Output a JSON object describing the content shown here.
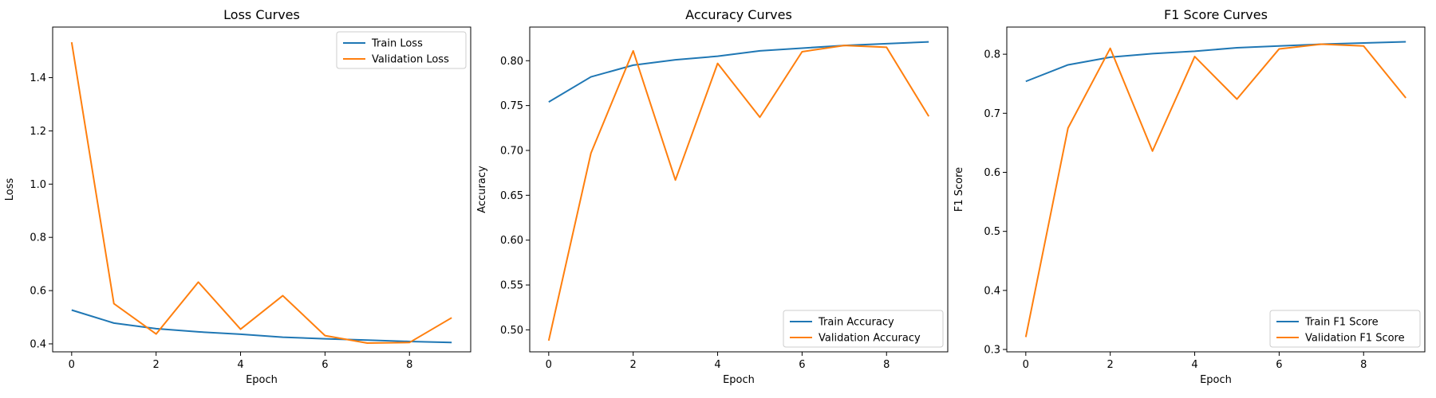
{
  "chart_data": [
    {
      "type": "line",
      "title": "Loss Curves",
      "xlabel": "Epoch",
      "ylabel": "Loss",
      "x": [
        0,
        1,
        2,
        3,
        4,
        5,
        6,
        7,
        8,
        9
      ],
      "xlim": [
        -0.45,
        9.45
      ],
      "ylim": [
        0.37,
        1.59
      ],
      "xticks": [
        0,
        2,
        4,
        6,
        8
      ],
      "xtick_labels": [
        "0",
        "2",
        "4",
        "6",
        "8"
      ],
      "yticks": [
        0.4,
        0.6,
        0.8,
        1.0,
        1.2,
        1.4
      ],
      "ytick_labels": [
        "0.4",
        "0.6",
        "0.8",
        "1.0",
        "1.2",
        "1.4"
      ],
      "legend_position": "top-right",
      "series": [
        {
          "name": "Train Loss",
          "color": "#1f77b4",
          "values": [
            0.527,
            0.478,
            0.457,
            0.445,
            0.436,
            0.425,
            0.419,
            0.414,
            0.409,
            0.405
          ]
        },
        {
          "name": "Validation Loss",
          "color": "#ff7f0e",
          "values": [
            1.533,
            0.551,
            0.437,
            0.632,
            0.455,
            0.581,
            0.431,
            0.403,
            0.405,
            0.498
          ]
        }
      ]
    },
    {
      "type": "line",
      "title": "Accuracy Curves",
      "xlabel": "Epoch",
      "ylabel": "Accuracy",
      "x": [
        0,
        1,
        2,
        3,
        4,
        5,
        6,
        7,
        8,
        9
      ],
      "xlim": [
        -0.45,
        9.45
      ],
      "ylim": [
        0.4755,
        0.8375
      ],
      "xticks": [
        0,
        2,
        4,
        6,
        8
      ],
      "xtick_labels": [
        "0",
        "2",
        "4",
        "6",
        "8"
      ],
      "yticks": [
        0.5,
        0.55,
        0.6,
        0.65,
        0.7,
        0.75,
        0.8
      ],
      "ytick_labels": [
        "0.50",
        "0.55",
        "0.60",
        "0.65",
        "0.70",
        "0.75",
        "0.80"
      ],
      "legend_position": "bottom-right",
      "series": [
        {
          "name": "Train Accuracy",
          "color": "#1f77b4",
          "values": [
            0.754,
            0.782,
            0.795,
            0.801,
            0.805,
            0.811,
            0.814,
            0.817,
            0.819,
            0.821
          ]
        },
        {
          "name": "Validation Accuracy",
          "color": "#ff7f0e",
          "values": [
            0.488,
            0.697,
            0.811,
            0.667,
            0.797,
            0.737,
            0.81,
            0.817,
            0.815,
            0.738
          ]
        }
      ]
    },
    {
      "type": "line",
      "title": "F1 Score Curves",
      "xlabel": "Epoch",
      "ylabel": "F1 Score",
      "x": [
        0,
        1,
        2,
        3,
        4,
        5,
        6,
        7,
        8,
        9
      ],
      "xlim": [
        -0.45,
        9.45
      ],
      "ylim": [
        0.296,
        0.846
      ],
      "xticks": [
        0,
        2,
        4,
        6,
        8
      ],
      "xtick_labels": [
        "0",
        "2",
        "4",
        "6",
        "8"
      ],
      "yticks": [
        0.3,
        0.4,
        0.5,
        0.6,
        0.7,
        0.8
      ],
      "ytick_labels": [
        "0.3",
        "0.4",
        "0.5",
        "0.6",
        "0.7",
        "0.8"
      ],
      "legend_position": "bottom-right",
      "series": [
        {
          "name": "Train F1 Score",
          "color": "#1f77b4",
          "values": [
            0.754,
            0.782,
            0.795,
            0.801,
            0.805,
            0.811,
            0.814,
            0.817,
            0.819,
            0.821
          ]
        },
        {
          "name": "Validation F1 Score",
          "color": "#ff7f0e",
          "values": [
            0.321,
            0.675,
            0.81,
            0.636,
            0.796,
            0.724,
            0.809,
            0.817,
            0.814,
            0.726
          ]
        }
      ]
    }
  ]
}
